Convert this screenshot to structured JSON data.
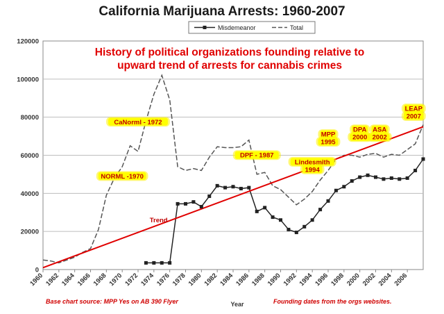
{
  "chart_data": {
    "type": "line",
    "title": "California Marijuana Arrests: 1960-2007",
    "xlabel": "Year",
    "ylabel": "",
    "xlim": [
      1960,
      2008
    ],
    "ylim": [
      0,
      120000
    ],
    "x_ticks": [
      1960,
      1962,
      1964,
      1966,
      1968,
      1970,
      1972,
      1974,
      1976,
      1978,
      1980,
      1982,
      1984,
      1986,
      1988,
      1990,
      1992,
      1994,
      1996,
      1998,
      2000,
      2002,
      2004,
      2006
    ],
    "y_ticks": [
      0,
      20000,
      40000,
      60000,
      80000,
      100000,
      120000
    ],
    "y_tick_labels": [
      "0",
      "20000",
      "40000",
      "60000",
      "80000",
      "100000",
      "120000"
    ],
    "grid": true,
    "legend_position": "top",
    "series": [
      {
        "name": "Misdemeanor",
        "color": "#222222",
        "marker": "square",
        "points": [
          [
            1973,
            3500
          ],
          [
            1974,
            3500
          ],
          [
            1975,
            3500
          ],
          [
            1976,
            3500
          ],
          [
            1977,
            34500
          ],
          [
            1978,
            34500
          ],
          [
            1979,
            35500
          ],
          [
            1980,
            33000
          ],
          [
            1981,
            38500
          ],
          [
            1982,
            44000
          ],
          [
            1983,
            43000
          ],
          [
            1984,
            43500
          ],
          [
            1985,
            42500
          ],
          [
            1986,
            43000
          ],
          [
            1987,
            30500
          ],
          [
            1988,
            32500
          ],
          [
            1989,
            27500
          ],
          [
            1990,
            26000
          ],
          [
            1991,
            21000
          ],
          [
            1992,
            19500
          ],
          [
            1993,
            22500
          ],
          [
            1994,
            26000
          ],
          [
            1995,
            31500
          ],
          [
            1996,
            36000
          ],
          [
            1997,
            41500
          ],
          [
            1998,
            43500
          ],
          [
            1999,
            46500
          ],
          [
            2000,
            48500
          ],
          [
            2001,
            49500
          ],
          [
            2002,
            48500
          ],
          [
            2003,
            47500
          ],
          [
            2004,
            48000
          ],
          [
            2005,
            47500
          ],
          [
            2006,
            48000
          ],
          [
            2007,
            52000
          ],
          [
            2008,
            58000
          ]
        ]
      },
      {
        "name": "Total",
        "color": "#555555",
        "marker": "dash",
        "points": [
          [
            1960,
            5000
          ],
          [
            1961,
            4500
          ],
          [
            1962,
            3500
          ],
          [
            1963,
            5000
          ],
          [
            1964,
            6500
          ],
          [
            1965,
            9000
          ],
          [
            1966,
            11000
          ],
          [
            1967,
            21000
          ],
          [
            1968,
            39000
          ],
          [
            1969,
            48000
          ],
          [
            1970,
            54000
          ],
          [
            1971,
            65000
          ],
          [
            1972,
            62000
          ],
          [
            1973,
            78000
          ],
          [
            1974,
            92000
          ],
          [
            1975,
            102000
          ],
          [
            1976,
            89000
          ],
          [
            1977,
            54000
          ],
          [
            1978,
            52000
          ],
          [
            1979,
            53000
          ],
          [
            1980,
            52000
          ],
          [
            1981,
            59000
          ],
          [
            1982,
            64500
          ],
          [
            1983,
            64000
          ],
          [
            1984,
            64000
          ],
          [
            1985,
            64500
          ],
          [
            1986,
            68000
          ],
          [
            1987,
            50000
          ],
          [
            1988,
            51000
          ],
          [
            1989,
            44000
          ],
          [
            1990,
            42000
          ],
          [
            1991,
            38000
          ],
          [
            1992,
            34000
          ],
          [
            1993,
            37000
          ],
          [
            1994,
            41000
          ],
          [
            1995,
            47000
          ],
          [
            1996,
            52000
          ],
          [
            1997,
            58000
          ],
          [
            1998,
            60000
          ],
          [
            1999,
            60000
          ],
          [
            2000,
            59000
          ],
          [
            2001,
            60500
          ],
          [
            2002,
            61000
          ],
          [
            2003,
            59000
          ],
          [
            2004,
            60500
          ],
          [
            2005,
            60000
          ],
          [
            2006,
            63000
          ],
          [
            2007,
            66000
          ],
          [
            2008,
            76000
          ]
        ]
      },
      {
        "name": "Trend",
        "color": "#e00000",
        "marker": "none",
        "points": [
          [
            1960,
            1000
          ],
          [
            2008,
            75000
          ]
        ]
      }
    ],
    "annotations": [
      {
        "text": "History of political organizations founding relative to",
        "role": "headline",
        "color": "#e00000"
      },
      {
        "text": "upward trend of arrests for cannabis crimes",
        "role": "headline",
        "color": "#e00000"
      },
      {
        "text": "NORML -1970",
        "x": 1970,
        "y": 48000,
        "highlight": true,
        "color": "#c00000"
      },
      {
        "text": "CaNorml - 1972",
        "x": 1972,
        "y": 76500,
        "highlight": true,
        "color": "#c00000"
      },
      {
        "text": "DPF - 1987",
        "x": 1987,
        "y": 59000,
        "highlight": true,
        "color": "#c00000"
      },
      {
        "text": "Lindesmith",
        "x": 1994,
        "y": 55500,
        "highlight": true,
        "color": "#c00000"
      },
      {
        "text": "1994",
        "x": 1994,
        "y": 51500,
        "highlight": true,
        "color": "#c00000"
      },
      {
        "text": "MPP",
        "x": 1996,
        "y": 70000,
        "highlight": true,
        "color": "#c00000"
      },
      {
        "text": "1995",
        "x": 1996,
        "y": 66000,
        "highlight": true,
        "color": "#c00000"
      },
      {
        "text": "DPA",
        "x": 2000,
        "y": 72500,
        "highlight": true,
        "color": "#c00000"
      },
      {
        "text": "2000",
        "x": 2000,
        "y": 68500,
        "highlight": true,
        "color": "#c00000"
      },
      {
        "text": "ASA",
        "x": 2002.5,
        "y": 72500,
        "highlight": true,
        "color": "#c00000"
      },
      {
        "text": "2002",
        "x": 2002.5,
        "y": 68500,
        "highlight": true,
        "color": "#c00000"
      },
      {
        "text": "LEAP",
        "x": 2006.8,
        "y": 83500,
        "highlight": true,
        "color": "#c00000"
      },
      {
        "text": "2007",
        "x": 2006.8,
        "y": 79500,
        "highlight": true,
        "color": "#c00000"
      },
      {
        "text": "Trend",
        "x": 1974.6,
        "y": 25000,
        "highlight": false,
        "color": "#c00000"
      }
    ],
    "footer_left": "Base chart source: MPP Yes on AB 390 Flyer",
    "footer_right": "Founding dates from the orgs websites."
  }
}
